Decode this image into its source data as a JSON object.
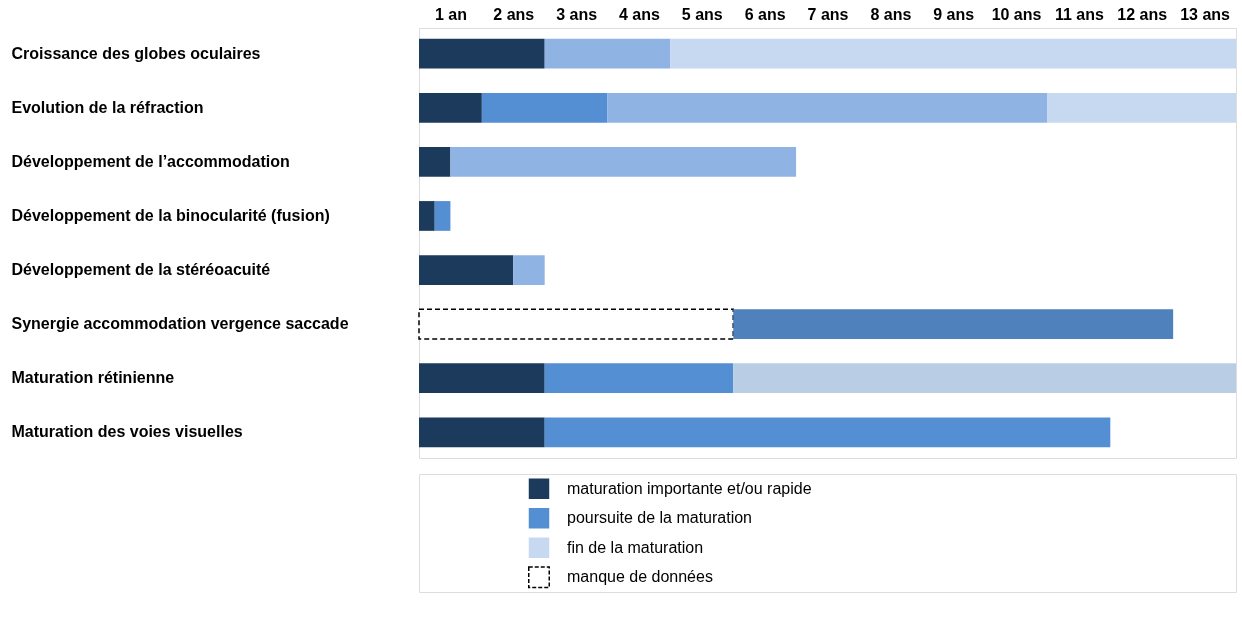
{
  "chart_data": {
    "type": "bar",
    "orientation": "horizontal",
    "stacked": true,
    "categories": [
      "Croissance des globes oculaires",
      "Evolution de la réfraction",
      "Développement de l’accommodation",
      "Développement de la binocularité (fusion)",
      "Développement de la stéréoacuité",
      "Synergie accommodation vergence saccade",
      "Maturation rétinienne",
      "Maturation des voies visuelles"
    ],
    "xlim": [
      0,
      13
    ],
    "xticks": [
      {
        "value": 0.5,
        "label": "1 an"
      },
      {
        "value": 1.5,
        "label": "2 ans"
      },
      {
        "value": 2.5,
        "label": "3 ans"
      },
      {
        "value": 3.5,
        "label": "4 ans"
      },
      {
        "value": 4.5,
        "label": "5 ans"
      },
      {
        "value": 5.5,
        "label": "6 ans"
      },
      {
        "value": 6.5,
        "label": "7 ans"
      },
      {
        "value": 7.5,
        "label": "8 ans"
      },
      {
        "value": 8.5,
        "label": "9 ans"
      },
      {
        "value": 9.5,
        "label": "10 ans"
      },
      {
        "value": 10.5,
        "label": "11 ans"
      },
      {
        "value": 11.5,
        "label": "12 ans"
      },
      {
        "value": 12.5,
        "label": "13 ans"
      }
    ],
    "series": [
      {
        "name": "maturation importante et/ou rapide",
        "color": "#1b3a5c",
        "values": [
          2,
          1,
          0.5,
          0.25,
          1.5,
          null,
          2,
          2
        ]
      },
      {
        "name": "manque de données",
        "color": "#ffffff",
        "line_style": "dashed",
        "values": [
          null,
          null,
          null,
          null,
          null,
          5,
          null,
          null
        ]
      },
      {
        "name": "poursuite de la maturation",
        "color": "#548fd4",
        "colors": [
          "#8fb4e3",
          "#548fd4",
          "#8fb4e3",
          "#548fd4",
          "#8fb4e3",
          "#4f81bd",
          "#548fd4",
          "#548fd4"
        ],
        "values": [
          2,
          2,
          5.5,
          0.25,
          0.5,
          7,
          3,
          9
        ]
      },
      {
        "name": "fin de la maturation",
        "color": "#c6d9f1",
        "colors": [
          "#c6d9f1",
          "#8fb4e3",
          "#c6d9f1",
          "#c6d9f1",
          "#c6d9f1",
          "#c6d9f1",
          "#b9cde5",
          "#c6d9f1"
        ],
        "values": [
          9,
          7,
          null,
          null,
          null,
          null,
          8,
          null
        ]
      },
      {
        "color": "#c6d9f1",
        "values": [
          null,
          3,
          null,
          null,
          null,
          null,
          null,
          null
        ]
      }
    ],
    "grid": false,
    "legend": "bottom"
  }
}
